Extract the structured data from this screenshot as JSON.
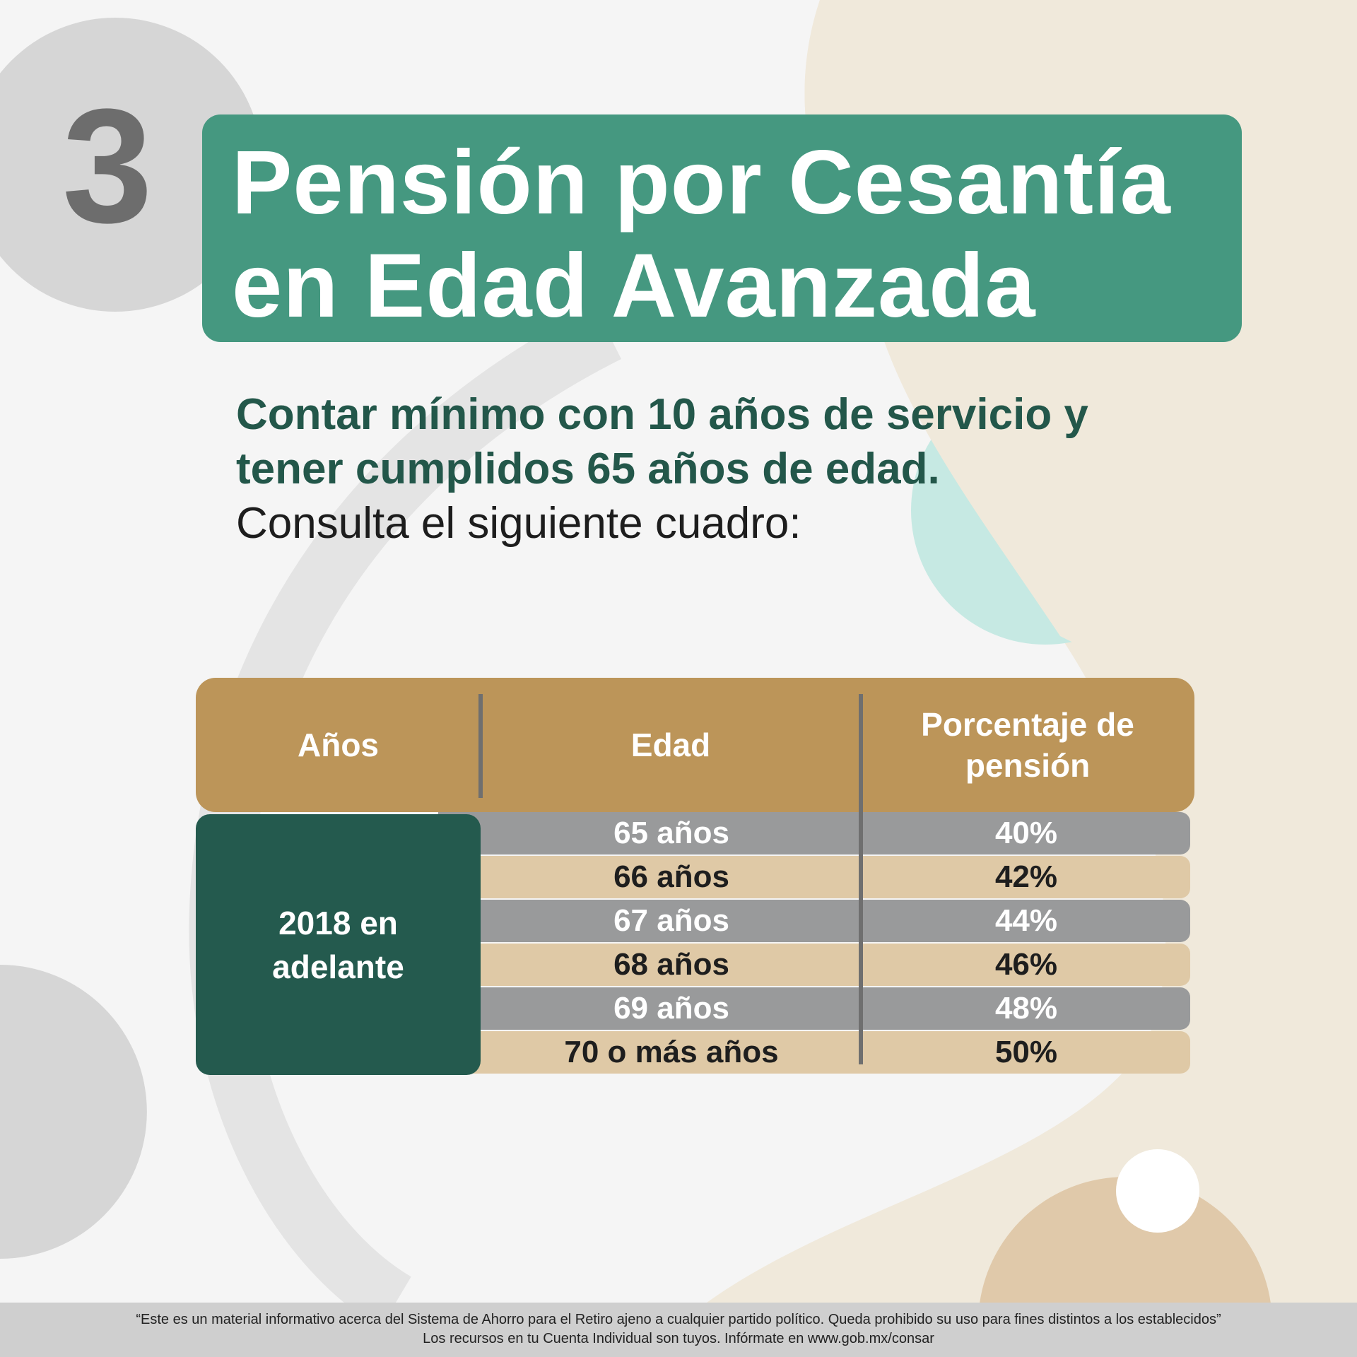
{
  "number": "3",
  "title": {
    "line1": "Pensión por Cesantía",
    "line2": "en Edad Avanzada"
  },
  "subtitle": {
    "bold_line1": "Contar mínimo con 10 años de servicio y",
    "bold_line2": "tener cumplidos 65 años de edad.",
    "regular": "Consulta el siguiente cuadro:"
  },
  "table": {
    "headers": [
      "Años",
      "Edad",
      "Porcentaje de pensión"
    ],
    "years": "2018 en adelante",
    "rows": [
      {
        "edad": "65 años",
        "porcentaje": "40%"
      },
      {
        "edad": "66 años",
        "porcentaje": "42%"
      },
      {
        "edad": "67 años",
        "porcentaje": "44%"
      },
      {
        "edad": "68 años",
        "porcentaje": "46%"
      },
      {
        "edad": "69 años",
        "porcentaje": "48%"
      },
      {
        "edad": "70 o más años",
        "porcentaje": "50%"
      }
    ]
  },
  "footer": {
    "line1": "“Este es un material informativo acerca del Sistema de Ahorro para el Retiro ajeno a cualquier partido político. Queda prohibido su uso para fines distintos a los establecidos”",
    "line2": "Los recursos en tu Cuenta Individual son tuyos. Infórmate en www.gob.mx/consar"
  },
  "colors": {
    "title_bg": "#459880",
    "header_bg": "#bc9559",
    "years_bg": "#245a4e",
    "row_gray": "#999a9b",
    "row_beige": "#dfc9a6",
    "subtitle": "#23574a"
  }
}
